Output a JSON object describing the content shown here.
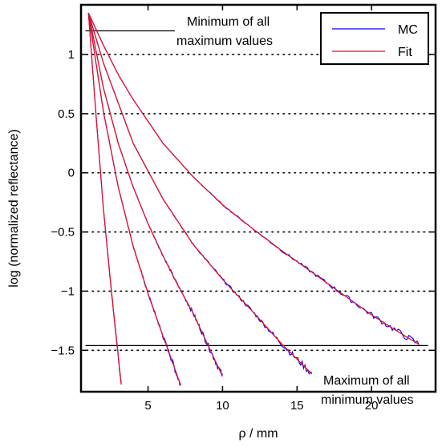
{
  "chart_data": {
    "type": "line",
    "title": "",
    "xlabel": "ρ / mm",
    "ylabel": "log (normalized reflectance)",
    "xlim": [
      0.5,
      24.3
    ],
    "ylim": [
      -1.85,
      1.42
    ],
    "xticks": [
      5,
      10,
      15,
      20
    ],
    "xtick_labels": [
      "5",
      "10",
      "15",
      "20"
    ],
    "yticks": [
      -1.5,
      -1,
      -0.5,
      0,
      0.5,
      1
    ],
    "ytick_labels": [
      "−1.5",
      "−1",
      "−0.5",
      "0",
      "0.5",
      "1"
    ],
    "grid": "horizontal dotted",
    "legend_position": "top-right",
    "legend": [
      {
        "label": "MC",
        "color": "#0000ff"
      },
      {
        "label": "Fit",
        "color": "#e0102a"
      }
    ],
    "reference_lines": [
      {
        "y": 1.2,
        "x_start": 0.8,
        "x_end": 6.8,
        "annotation": [
          "Minimum of all",
          "maximum values"
        ]
      },
      {
        "y": -1.46,
        "x_start": 0.8,
        "x_end": 23.8,
        "annotation": [
          "Maximum of all",
          "minimum values"
        ]
      }
    ],
    "series": [
      {
        "x": [
          1.0,
          1.5,
          2.0,
          2.5,
          3.0,
          3.2
        ],
        "y": [
          1.35,
          0.5,
          -0.3,
          -0.95,
          -1.55,
          -1.79
        ]
      },
      {
        "x": [
          1.0,
          2.0,
          3.0,
          4.0,
          5.0,
          6.0,
          6.5,
          7.2
        ],
        "y": [
          1.35,
          0.52,
          -0.12,
          -0.62,
          -1.02,
          -1.38,
          -1.55,
          -1.8
        ]
      },
      {
        "x": [
          1.0,
          2.0,
          3.0,
          4.0,
          5.0,
          6.0,
          7.0,
          8.0,
          9.0,
          10.0
        ],
        "y": [
          1.35,
          0.72,
          0.25,
          -0.12,
          -0.43,
          -0.7,
          -0.95,
          -1.18,
          -1.45,
          -1.72
        ]
      },
      {
        "x": [
          1.0,
          2.0,
          4.0,
          6.0,
          8.0,
          10.0,
          12.0,
          14.0,
          16.0
        ],
        "y": [
          1.35,
          0.93,
          0.25,
          -0.22,
          -0.6,
          -0.9,
          -1.17,
          -1.45,
          -1.7
        ]
      },
      {
        "x": [
          1.0,
          2.0,
          3.0,
          4.0,
          6.0,
          8.0,
          10.0,
          12.0,
          14.0,
          16.0,
          18.0,
          20.0,
          22.0,
          23.2
        ],
        "y": [
          1.35,
          1.08,
          0.83,
          0.62,
          0.25,
          -0.03,
          -0.27,
          -0.47,
          -0.66,
          -0.84,
          -1.02,
          -1.2,
          -1.36,
          -1.45
        ]
      }
    ]
  }
}
